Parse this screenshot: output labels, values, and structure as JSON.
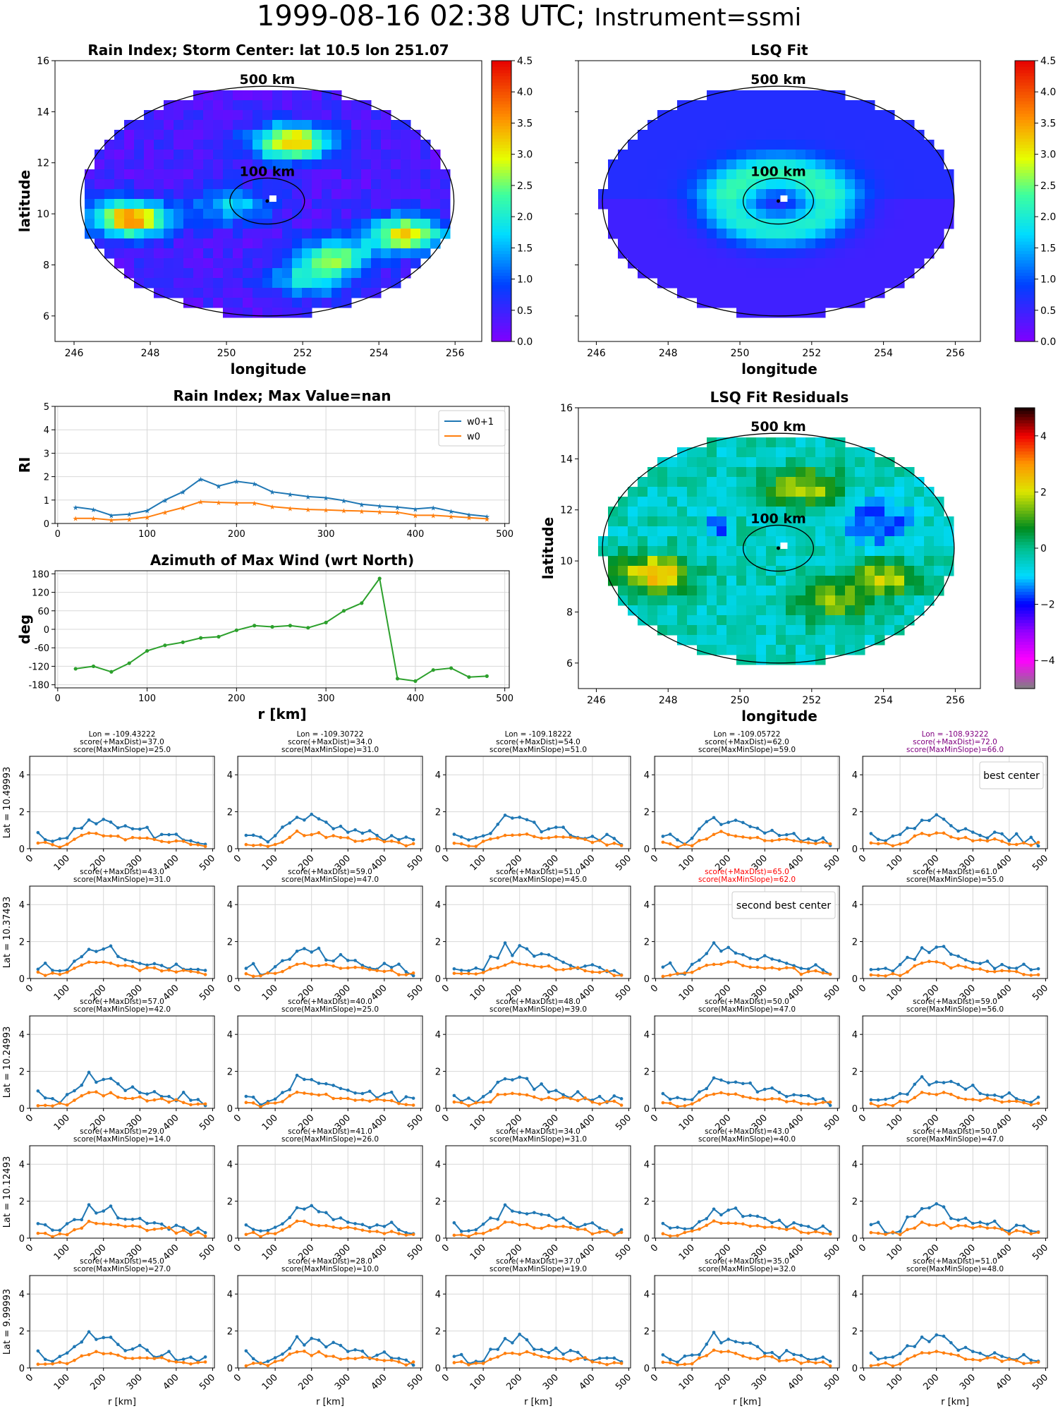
{
  "header": {
    "datetime": "1999-08-16 02:38 UTC;",
    "instrument": "Instrument=ssmi"
  },
  "chart_data": [
    {
      "type": "heatmap",
      "title": "Rain Index; Storm Center: lat 10.5 lon 251.07",
      "xlabel": "longitude",
      "ylabel": "latitude",
      "xlim": [
        245.5,
        256.7
      ],
      "ylim": [
        5,
        16
      ],
      "xticks": [
        246,
        248,
        250,
        252,
        254,
        256
      ],
      "yticks": [
        6,
        8,
        10,
        12,
        14,
        16
      ],
      "colorbar": {
        "min": 0,
        "max": 4.5,
        "ticks": [
          "0.0",
          "0.5",
          "1.0",
          "1.5",
          "2.0",
          "2.5",
          "3.0",
          "3.5",
          "4.0",
          "4.5"
        ],
        "colormap": "rainbow"
      },
      "center": {
        "lon": 251.07,
        "lat": 10.5
      },
      "rings": [
        {
          "label": "500 km",
          "radius_km": 500
        },
        {
          "label": "100 km",
          "radius_km": 100
        }
      ],
      "hotspots": [
        {
          "lon": 251.7,
          "lat": 12.8,
          "value": 3.0
        },
        {
          "lon": 247.5,
          "lat": 9.8,
          "value": 3.2
        },
        {
          "lon": 254.7,
          "lat": 9.2,
          "value": 2.8
        },
        {
          "lon": 252.8,
          "lat": 8.3,
          "value": 2.0
        },
        {
          "lon": 250.2,
          "lat": 10.3,
          "value": 1.3
        },
        {
          "lon": 252.2,
          "lat": 7.4,
          "value": 1.4
        }
      ]
    },
    {
      "type": "heatmap",
      "title": "LSQ Fit",
      "xlabel": "longitude",
      "ylabel": "",
      "xlim": [
        245.5,
        256.7
      ],
      "ylim": [
        5,
        16
      ],
      "xticks": [
        246,
        248,
        250,
        252,
        254,
        256
      ],
      "colorbar": {
        "min": 0,
        "max": 4.5,
        "ticks": [
          "0.0",
          "0.5",
          "1.0",
          "1.5",
          "2.0",
          "2.5",
          "3.0",
          "3.5",
          "4.0",
          "4.5"
        ],
        "colormap": "rainbow"
      },
      "center": {
        "lon": 251.07,
        "lat": 10.5
      },
      "rings": [
        {
          "label": "500 km",
          "radius_km": 500
        },
        {
          "label": "100 km",
          "radius_km": 100
        }
      ]
    },
    {
      "type": "line",
      "title": "Rain Index; Max Value=nan",
      "xlabel": "",
      "ylabel": "RI",
      "xlim": [
        -3,
        505
      ],
      "ylim": [
        0,
        5
      ],
      "xticks": [
        0,
        100,
        200,
        300,
        400,
        500
      ],
      "yticks": [
        0,
        1,
        2,
        3,
        4,
        5
      ],
      "legend": "top-right",
      "x": [
        20,
        40,
        60,
        80,
        100,
        120,
        140,
        160,
        180,
        200,
        220,
        240,
        260,
        280,
        300,
        320,
        340,
        360,
        380,
        400,
        420,
        440,
        460,
        480
      ],
      "series": [
        {
          "name": "w0+1",
          "color": "#1f77b4",
          "values": [
            0.7,
            0.6,
            0.35,
            0.4,
            0.55,
            1.0,
            1.35,
            1.9,
            1.6,
            1.8,
            1.7,
            1.35,
            1.25,
            1.15,
            1.1,
            0.98,
            0.82,
            0.75,
            0.7,
            0.62,
            0.68,
            0.52,
            0.38,
            0.3
          ]
        },
        {
          "name": "w0",
          "color": "#ff7f0e",
          "values": [
            0.22,
            0.22,
            0.15,
            0.18,
            0.27,
            0.48,
            0.68,
            0.93,
            0.9,
            0.88,
            0.88,
            0.72,
            0.65,
            0.6,
            0.58,
            0.55,
            0.53,
            0.5,
            0.48,
            0.35,
            0.35,
            0.3,
            0.25,
            0.2
          ]
        }
      ]
    },
    {
      "type": "line",
      "title": "Azimuth of Max Wind (wrt North)",
      "xlabel": "r [km]",
      "ylabel": "deg",
      "xlim": [
        -3,
        505
      ],
      "ylim": [
        -190,
        190
      ],
      "xticks": [
        0,
        100,
        200,
        300,
        400,
        500
      ],
      "yticks": [
        180,
        120,
        60,
        0,
        -60,
        -120,
        -180
      ],
      "x": [
        20,
        40,
        60,
        80,
        100,
        120,
        140,
        160,
        180,
        200,
        220,
        240,
        260,
        280,
        300,
        320,
        340,
        360,
        380,
        400,
        420,
        440,
        460,
        480
      ],
      "series": [
        {
          "color": "#2ca02c",
          "values": [
            -128,
            -120,
            -138,
            -110,
            -70,
            -52,
            -42,
            -28,
            -24,
            -3,
            12,
            8,
            12,
            5,
            22,
            60,
            85,
            165,
            -160,
            -168,
            -132,
            -126,
            -155,
            -152
          ]
        }
      ]
    },
    {
      "type": "heatmap",
      "title": "LSQ Fit Residuals",
      "xlabel": "longitude",
      "ylabel": "latitude",
      "xlim": [
        245.5,
        256.7
      ],
      "ylim": [
        5,
        16
      ],
      "xticks": [
        246,
        248,
        250,
        252,
        254,
        256
      ],
      "yticks": [
        6,
        8,
        10,
        12,
        14,
        16
      ],
      "colorbar": {
        "min": -5,
        "max": 5,
        "ticks": [
          "4",
          "2",
          "0",
          "−2",
          "−4"
        ],
        "colormap": "spectral-diverging"
      },
      "center": {
        "lon": 251.07,
        "lat": 10.5
      },
      "rings": [
        {
          "label": "500 km",
          "radius_km": 500
        },
        {
          "label": "100 km",
          "radius_km": 100
        }
      ]
    }
  ],
  "grid": {
    "lons": [
      "Lon = -109.43222",
      "Lon = -109.30722",
      "Lon = -109.18222",
      "Lon = -109.05722",
      "Lon = -108.93222"
    ],
    "lats": [
      "Lat = 10.49993",
      "Lat = 10.37493",
      "Lat = 10.24993",
      "Lat = 10.12493",
      "Lat = 9.99993"
    ],
    "xlabel": "r [km]",
    "xticks": [
      0,
      100,
      200,
      300,
      400,
      500
    ],
    "yticks": [
      0,
      2,
      4
    ],
    "ylim": [
      0,
      5
    ],
    "best_label": "best center",
    "second_label": "second best center",
    "scores": [
      [
        [
          "score(+MaxDist)=37.0",
          "score(MaxMinSlope)=25.0"
        ],
        [
          "score(+MaxDist)=34.0",
          "score(MaxMinSlope)=31.0"
        ],
        [
          "score(+MaxDist)=54.0",
          "score(MaxMinSlope)=51.0"
        ],
        [
          "score(+MaxDist)=62.0",
          "score(MaxMinSlope)=59.0"
        ],
        [
          "score(+MaxDist)=72.0",
          "score(MaxMinSlope)=66.0"
        ]
      ],
      [
        [
          "score(+MaxDist)=43.0",
          "score(MaxMinSlope)=31.0"
        ],
        [
          "score(+MaxDist)=59.0",
          "score(MaxMinSlope)=47.0"
        ],
        [
          "score(+MaxDist)=51.0",
          "score(MaxMinSlope)=45.0"
        ],
        [
          "score(+MaxDist)=65.0",
          "score(MaxMinSlope)=62.0"
        ],
        [
          "score(+MaxDist)=61.0",
          "score(MaxMinSlope)=55.0"
        ]
      ],
      [
        [
          "score(+MaxDist)=57.0",
          "score(MaxMinSlope)=42.0"
        ],
        [
          "score(+MaxDist)=40.0",
          "score(MaxMinSlope)=25.0"
        ],
        [
          "score(+MaxDist)=48.0",
          "score(MaxMinSlope)=39.0"
        ],
        [
          "score(+MaxDist)=50.0",
          "score(MaxMinSlope)=47.0"
        ],
        [
          "score(+MaxDist)=59.0",
          "score(MaxMinSlope)=56.0"
        ]
      ],
      [
        [
          "score(+MaxDist)=29.0",
          "score(MaxMinSlope)=14.0"
        ],
        [
          "score(+MaxDist)=41.0",
          "score(MaxMinSlope)=26.0"
        ],
        [
          "score(+MaxDist)=34.0",
          "score(MaxMinSlope)=31.0"
        ],
        [
          "score(+MaxDist)=43.0",
          "score(MaxMinSlope)=40.0"
        ],
        [
          "score(+MaxDist)=50.0",
          "score(MaxMinSlope)=47.0"
        ]
      ],
      [
        [
          "score(+MaxDist)=45.0",
          "score(MaxMinSlope)=27.0"
        ],
        [
          "score(+MaxDist)=28.0",
          "score(MaxMinSlope)=10.0"
        ],
        [
          "score(+MaxDist)=37.0",
          "score(MaxMinSlope)=19.0"
        ],
        [
          "score(+MaxDist)=35.0",
          "score(MaxMinSlope)=32.0"
        ],
        [
          "score(+MaxDist)=51.0",
          "score(MaxMinSlope)=48.0"
        ]
      ]
    ],
    "highlight": {
      "best": [
        0,
        4
      ],
      "best_color": "#800080",
      "second": [
        1,
        3
      ],
      "second_color": "#ff0000"
    }
  }
}
